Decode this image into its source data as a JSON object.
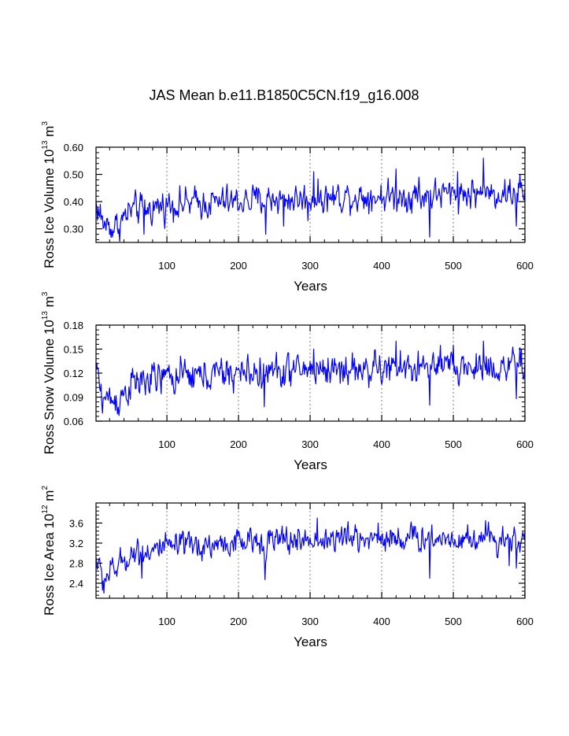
{
  "title": "JAS Mean b.e11.B1850C5CN.f19_g16.008",
  "colors": {
    "series": "#0000ff",
    "axis": "#000000",
    "grid": "#7f7f7f"
  },
  "chart_data": [
    {
      "type": "line",
      "name": "ross-ice-volume",
      "ylabel": {
        "main": "Ross Ice Volume 10",
        "exp": "13",
        "unit": " m",
        "unit_exp": "3"
      },
      "xlabel": "Years",
      "xlim": [
        1,
        600
      ],
      "ylim": [
        0.25,
        0.6
      ],
      "xticks": [
        100,
        200,
        300,
        400,
        500,
        600
      ],
      "xtick_labels": [
        "100",
        "200",
        "300",
        "400",
        "500",
        "600"
      ],
      "yticks": [
        0.3,
        0.4,
        0.5,
        0.6
      ],
      "ytick_labels": [
        "0.30",
        "0.40",
        "0.50",
        "0.60"
      ],
      "vgrid": [
        100,
        200,
        300,
        400,
        500
      ],
      "anchors": [
        [
          1,
          0.39
        ],
        [
          10,
          0.32
        ],
        [
          30,
          0.31
        ],
        [
          50,
          0.37
        ],
        [
          70,
          0.37
        ],
        [
          100,
          0.39
        ],
        [
          150,
          0.395
        ],
        [
          200,
          0.4
        ],
        [
          250,
          0.41
        ],
        [
          300,
          0.41
        ],
        [
          350,
          0.42
        ],
        [
          400,
          0.42
        ],
        [
          450,
          0.42
        ],
        [
          500,
          0.43
        ],
        [
          550,
          0.43
        ],
        [
          600,
          0.43
        ]
      ],
      "noise_sd": 0.035,
      "extremes": [
        [
          7,
          0.39
        ],
        [
          24,
          0.27
        ],
        [
          68,
          0.28
        ],
        [
          238,
          0.28
        ],
        [
          263,
          0.31
        ],
        [
          297,
          0.33
        ],
        [
          305,
          0.51
        ],
        [
          420,
          0.52
        ],
        [
          452,
          0.49
        ],
        [
          467,
          0.27
        ],
        [
          506,
          0.51
        ],
        [
          542,
          0.56
        ],
        [
          588,
          0.31
        ],
        [
          593,
          0.5
        ]
      ]
    },
    {
      "type": "line",
      "name": "ross-snow-volume",
      "ylabel": {
        "main": "Ross Snow Volume 10",
        "exp": "13",
        "unit": " m",
        "unit_exp": "3"
      },
      "xlabel": "Years",
      "xlim": [
        1,
        600
      ],
      "ylim": [
        0.06,
        0.18
      ],
      "xticks": [
        100,
        200,
        300,
        400,
        500,
        600
      ],
      "xtick_labels": [
        "100",
        "200",
        "300",
        "400",
        "500",
        "600"
      ],
      "yticks": [
        0.06,
        0.09,
        0.12,
        0.15,
        0.18
      ],
      "ytick_labels": [
        "0.06",
        "0.09",
        "0.12",
        "0.15",
        "0.18"
      ],
      "vgrid": [
        100,
        200,
        300,
        400,
        500
      ],
      "anchors": [
        [
          1,
          0.12
        ],
        [
          10,
          0.09
        ],
        [
          30,
          0.085
        ],
        [
          50,
          0.105
        ],
        [
          70,
          0.11
        ],
        [
          100,
          0.115
        ],
        [
          150,
          0.117
        ],
        [
          200,
          0.12
        ],
        [
          250,
          0.122
        ],
        [
          300,
          0.125
        ],
        [
          350,
          0.125
        ],
        [
          400,
          0.125
        ],
        [
          450,
          0.127
        ],
        [
          500,
          0.127
        ],
        [
          550,
          0.128
        ],
        [
          600,
          0.128
        ]
      ],
      "noise_sd": 0.013,
      "extremes": [
        [
          3,
          0.125
        ],
        [
          33,
          0.067
        ],
        [
          236,
          0.078
        ],
        [
          283,
          0.143
        ],
        [
          305,
          0.15
        ],
        [
          420,
          0.16
        ],
        [
          467,
          0.08
        ],
        [
          500,
          0.155
        ],
        [
          542,
          0.16
        ],
        [
          588,
          0.088
        ],
        [
          595,
          0.15
        ]
      ]
    },
    {
      "type": "line",
      "name": "ross-ice-area",
      "ylabel": {
        "main": "Ross Ice Area 10",
        "exp": "12",
        "unit": " m",
        "unit_exp": "2"
      },
      "xlabel": "Years",
      "xlim": [
        1,
        600
      ],
      "ylim": [
        2.1,
        4.0
      ],
      "xticks": [
        100,
        200,
        300,
        400,
        500,
        600
      ],
      "xtick_labels": [
        "100",
        "200",
        "300",
        "400",
        "500",
        "600"
      ],
      "yticks": [
        2.4,
        2.8,
        3.2,
        3.6
      ],
      "ytick_labels": [
        "2.4",
        "2.8",
        "3.2",
        "3.6"
      ],
      "vgrid": [
        100,
        200,
        300,
        400,
        500
      ],
      "anchors": [
        [
          1,
          2.9
        ],
        [
          10,
          2.5
        ],
        [
          30,
          2.7
        ],
        [
          50,
          3.0
        ],
        [
          70,
          3.05
        ],
        [
          100,
          3.1
        ],
        [
          150,
          3.15
        ],
        [
          200,
          3.2
        ],
        [
          250,
          3.25
        ],
        [
          300,
          3.25
        ],
        [
          350,
          3.3
        ],
        [
          400,
          3.3
        ],
        [
          450,
          3.3
        ],
        [
          500,
          3.3
        ],
        [
          550,
          3.3
        ],
        [
          600,
          3.3
        ]
      ],
      "noise_sd": 0.17,
      "extremes": [
        [
          12,
          2.2
        ],
        [
          65,
          2.5
        ],
        [
          237,
          2.47
        ],
        [
          310,
          3.7
        ],
        [
          395,
          3.6
        ],
        [
          467,
          2.5
        ],
        [
          545,
          3.65
        ],
        [
          578,
          2.75
        ],
        [
          588,
          2.7
        ]
      ]
    }
  ]
}
